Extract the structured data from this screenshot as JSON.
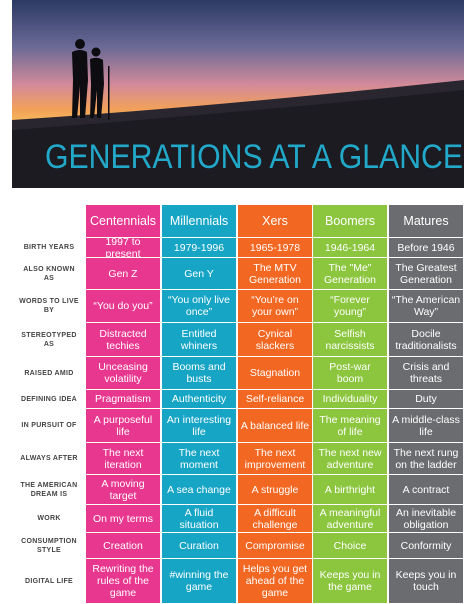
{
  "header": {
    "title": "GENERATIONS AT A GLANCE"
  },
  "table": {
    "columns": [
      "Centennials",
      "Millennials",
      "Xers",
      "Boomers",
      "Matures"
    ],
    "rows": [
      {
        "label": "BIRTH YEARS",
        "cells": [
          "1997 to present",
          "1979-1996",
          "1965-1978",
          "1946-1964",
          "Before 1946"
        ]
      },
      {
        "label": "ALSO KNOWN AS",
        "cells": [
          "Gen Z",
          "Gen Y",
          "The MTV Generation",
          "The \"Me\" Generation",
          "The Greatest Generation"
        ]
      },
      {
        "label": "WORDS TO LIVE BY",
        "cells": [
          "“You do you”",
          "“You only live once”",
          "“You’re on your own”",
          "“Forever young”",
          "“The American Way”"
        ]
      },
      {
        "label": "STEREOTYPED AS",
        "cells": [
          "Distracted techies",
          "Entitled whiners",
          "Cynical slackers",
          "Selfish narcissists",
          "Docile traditionalists"
        ]
      },
      {
        "label": "RAISED AMID",
        "cells": [
          "Unceasing volatility",
          "Booms and busts",
          "Stagnation",
          "Post-war boom",
          "Crisis and threats"
        ]
      },
      {
        "label": "DEFINING IDEA",
        "cells": [
          "Pragmatism",
          "Authenticity",
          "Self-reliance",
          "Individuality",
          "Duty"
        ]
      },
      {
        "label": "IN PURSUIT OF",
        "cells": [
          "A purposeful life",
          "An interesting life",
          "A balanced life",
          "The meaning of life",
          "A middle-class life"
        ]
      },
      {
        "label": "ALWAYS AFTER",
        "cells": [
          "The next iteration",
          "The next moment",
          "The next improvement",
          "The next new adventure",
          "The next rung on the ladder"
        ]
      },
      {
        "label": "THE AMERICAN DREAM IS",
        "cells": [
          "A moving target",
          "A sea change",
          "A struggle",
          "A birthright",
          "A contract"
        ]
      },
      {
        "label": "WORK",
        "cells": [
          "On my terms",
          "A fluid situation",
          "A difficult challenge",
          "A meaningful adventure",
          "An inevitable obligation"
        ]
      },
      {
        "label": "CONSUMPTION STYLE",
        "cells": [
          "Creation",
          "Curation",
          "Compromise",
          "Choice",
          "Conformity"
        ]
      },
      {
        "label": "DIGITAL LIFE",
        "cells": [
          "Rewriting the rules of the game",
          "#winning the game",
          "Helps you get ahead of the game",
          "Keeps you in the game",
          "Keeps you in touch"
        ]
      }
    ]
  }
}
